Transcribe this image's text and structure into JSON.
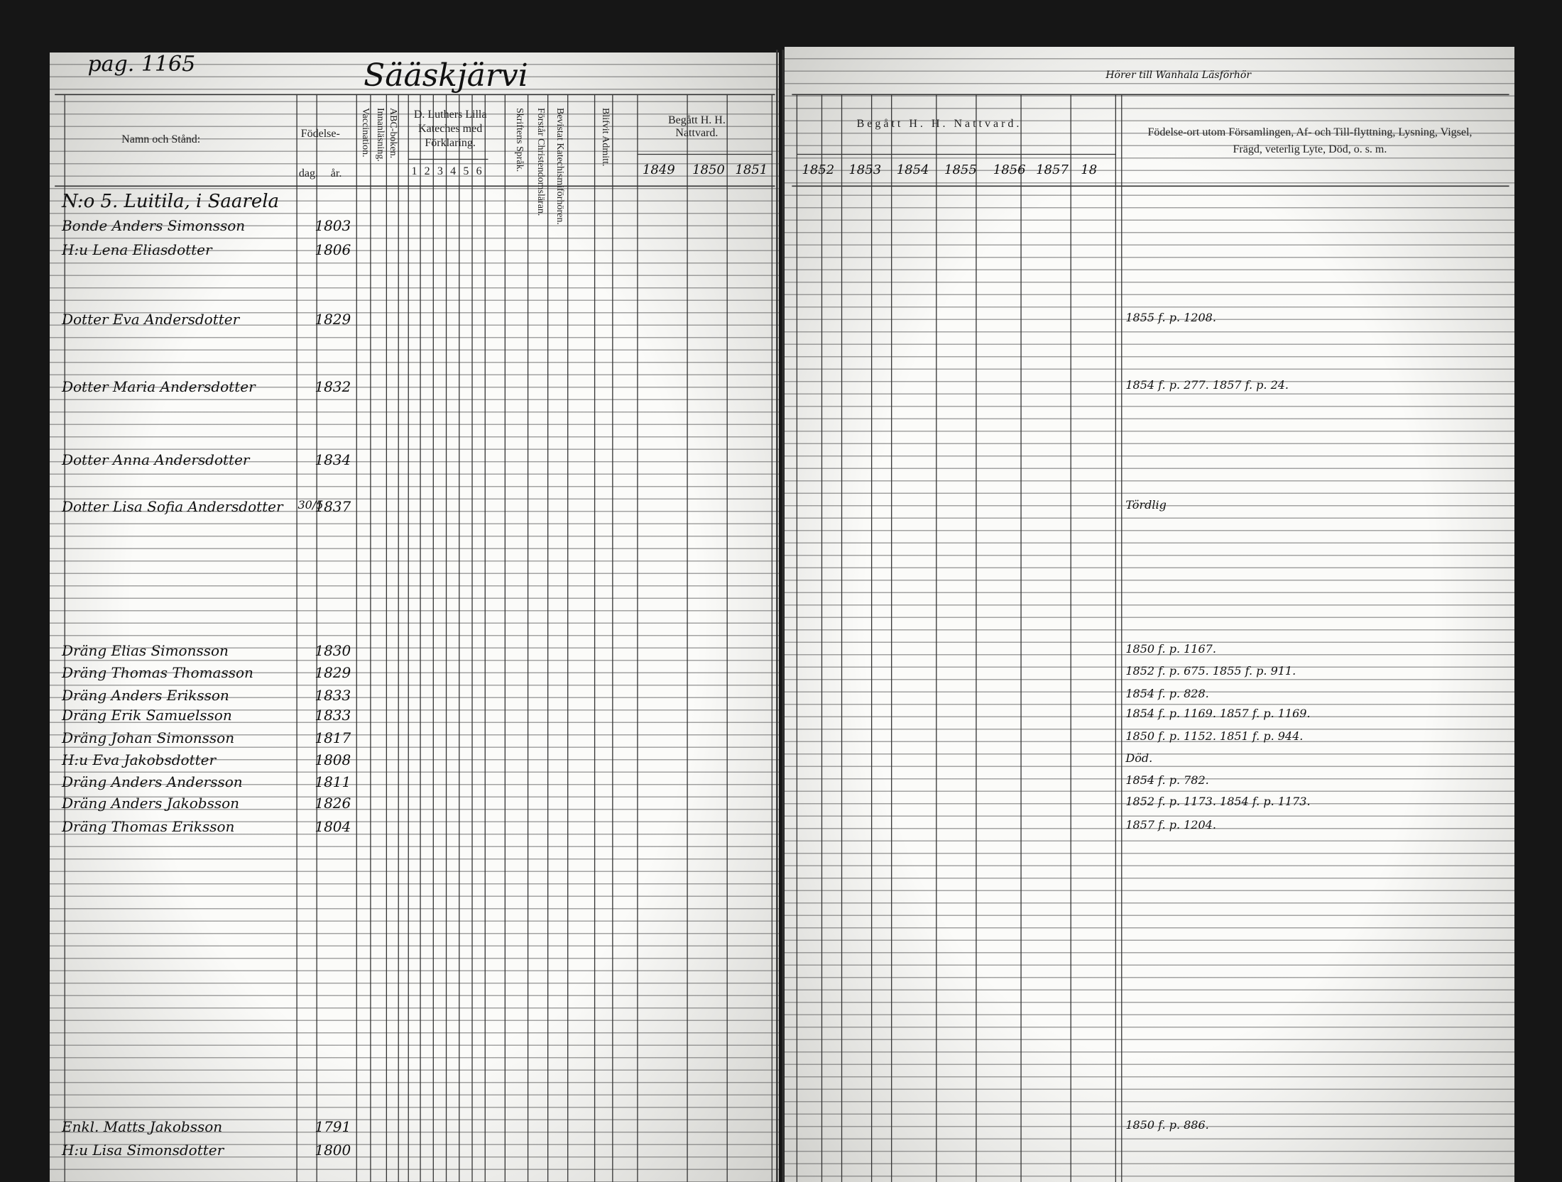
{
  "header": {
    "page": "pag. 1165",
    "parish": "Sääskjärvi",
    "note": "Hörer till Wanhala Läsförhör"
  },
  "columns": {
    "name": "Namn och Stånd:",
    "birth": "Födelse-",
    "day": "dag.",
    "year": "år.",
    "vaccination": "Vaccination.",
    "reading": "Innanläsning.",
    "abc": "ABC-boken.",
    "catechism": "D. Luthers Lilla Kateches med Förklaring.",
    "catechism_parts": [
      "1",
      "2",
      "3",
      "4",
      "5",
      "6"
    ],
    "scripture": "Skriftens Språk.",
    "christianity": "Förstår Christendomsläran.",
    "hearings": "Bevistat Katechismiförhören.",
    "admitted": "Blifvit Admitt.",
    "communion": "Begått H. H. Nattvard.",
    "communion_right": "Begått H. H. Nattvard.",
    "years_left": [
      "1849",
      "1850",
      "1851"
    ],
    "years_right": [
      "1852",
      "1853",
      "1854",
      "1855",
      "1856",
      "1857",
      "18"
    ],
    "remarks": "Födelse-ort utom Församlingen, Af- och Till-flyttning, Lysning, Vigsel, Frägd, veterlig Lyte, Död, o. s. m."
  },
  "rows": [
    {
      "name": "N:o 5. Luitila, i Saarela"
    },
    {
      "name": "Bonde Anders Simonsson",
      "year": "1803"
    },
    {
      "name": "H:u Lena Eliasdotter",
      "year": "1806"
    },
    {
      "name": "Dotter Eva Andersdotter",
      "year": "1829",
      "note": "1855 f. p. 1208."
    },
    {
      "name": "Dotter Maria Andersdotter",
      "year": "1832",
      "note": "1854 f. p. 277. 1857 f. p. 24."
    },
    {
      "name": "Dotter Anna Andersdotter",
      "year": "1834"
    },
    {
      "name": "Dotter Lisa Sofia Andersdotter",
      "day": "30/5",
      "year": "1837",
      "note": "Tördlig"
    },
    {
      "name": "Dräng Elias Simonsson",
      "year": "1830",
      "note": "1850 f. p. 1167."
    },
    {
      "name": "Dräng Thomas Thomasson",
      "year": "1829",
      "note": "1852 f. p. 675. 1855 f. p. 911."
    },
    {
      "name": "Dräng Anders Eriksson",
      "year": "1833",
      "note": "1854 f. p. 828."
    },
    {
      "name": "Dräng Erik Samuelsson",
      "year": "1833",
      "note": "1854 f. p. 1169. 1857 f. p. 1169."
    },
    {
      "name": "Dräng Johan Simonsson",
      "year": "1817",
      "note": "1850 f. p. 1152. 1851 f. p. 944."
    },
    {
      "name": "H:u Eva Jakobsdotter",
      "year": "1808",
      "note": "Död."
    },
    {
      "name": "Dräng Anders Andersson",
      "year": "1811",
      "note": "1854 f. p. 782."
    },
    {
      "name": "Dräng Anders Jakobsson",
      "year": "1826",
      "note": "1852 f. p. 1173. 1854 f. p. 1173."
    },
    {
      "name": "Dräng Thomas Eriksson",
      "year": "1804",
      "note": "1857 f. p. 1204."
    },
    {
      "name": "Enkl. Matts Jakobsson",
      "year": "1791",
      "note": "1850 f. p. 886."
    },
    {
      "name": "H:u Lisa Simonsdotter",
      "year": "1800"
    }
  ]
}
